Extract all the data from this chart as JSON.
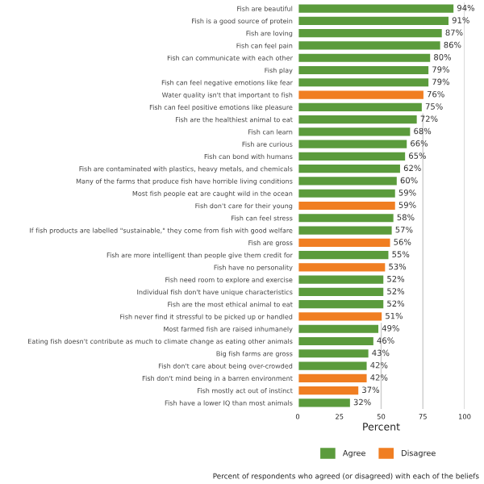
{
  "chart_data": {
    "type": "bar",
    "orientation": "horizontal",
    "xlabel": "Percent",
    "categories": [
      "Fish are beautiful",
      "Fish is a good source of protein",
      "Fish are loving",
      "Fish can feel pain",
      "Fish can communicate with each other",
      "Fish play",
      "Fish can feel negative emotions like fear",
      "Water quality isn't that important to fish",
      "Fish can feel positive emotions like pleasure",
      "Fish are the healthiest animal to eat",
      "Fish can learn",
      "Fish are curious",
      "Fish can bond with humans",
      "Fish are contaminated with plastics, heavy metals, and chemicals",
      "Many of the farms that produce fish have horrible living conditions",
      "Most fish people eat are caught wild in the ocean",
      "Fish don't care for their young",
      "Fish can feel stress",
      "If fish products are labelled \"sustainable,\" they come from fish with good welfare",
      "Fish are gross",
      "Fish are more intelligent than people give them credit for",
      "Fish have no personality",
      "Fish need room to explore and exercise",
      "Individual fish don't have unique characteristics",
      "Fish are the most ethical animal to eat",
      "Fish never find it stressful to be picked up or handled",
      "Most farmed fish are raised inhumanely",
      "Eating fish doesn't contribute as much to climate change as eating other animals",
      "Big fish farms are gross",
      "Fish don't care about being over-crowded",
      "Fish don't mind being in a barren environment",
      "Fish mostly act out of instinct",
      "Fish have a lower IQ than most animals"
    ],
    "series": [
      {
        "name": "Agree",
        "color": "#5b9b3c",
        "values": [
          94,
          91,
          87,
          86,
          80,
          79,
          79,
          null,
          75,
          72,
          68,
          66,
          65,
          62,
          60,
          59,
          null,
          58,
          57,
          null,
          55,
          null,
          52,
          52,
          52,
          null,
          49,
          46,
          43,
          42,
          null,
          null,
          32
        ],
        "value_labels": [
          "94%",
          "91%",
          "87%",
          "86%",
          "80%",
          "79%",
          "79%",
          null,
          "75%",
          "72%",
          "68%",
          "66%",
          "65%",
          "62%",
          "60%",
          "59%",
          null,
          "58%",
          "57%",
          null,
          "55%",
          null,
          "52%",
          "52%",
          "52%",
          null,
          "49%",
          "46%",
          "43%",
          "42%",
          null,
          null,
          "32%"
        ]
      },
      {
        "name": "Disagree",
        "color": "#f07e22",
        "values": [
          null,
          null,
          null,
          null,
          null,
          null,
          null,
          76,
          null,
          null,
          null,
          null,
          null,
          null,
          null,
          null,
          59,
          null,
          null,
          56,
          null,
          53,
          null,
          null,
          null,
          51,
          null,
          null,
          null,
          null,
          42,
          37,
          null
        ],
        "value_labels": [
          null,
          null,
          null,
          null,
          null,
          null,
          null,
          "76%",
          null,
          null,
          null,
          null,
          null,
          null,
          null,
          null,
          "59%",
          null,
          null,
          "56%",
          null,
          "53%",
          null,
          null,
          null,
          "51%",
          null,
          null,
          null,
          null,
          "42%",
          "37%",
          null
        ]
      }
    ],
    "xlim": [
      0,
      100
    ],
    "xticks": [
      0,
      25,
      50,
      75,
      100
    ],
    "grid": "x",
    "legend": "bottom",
    "annotations": [
      "Percent of respondents who agreed (or disagreed) with each of the beliefs"
    ]
  }
}
